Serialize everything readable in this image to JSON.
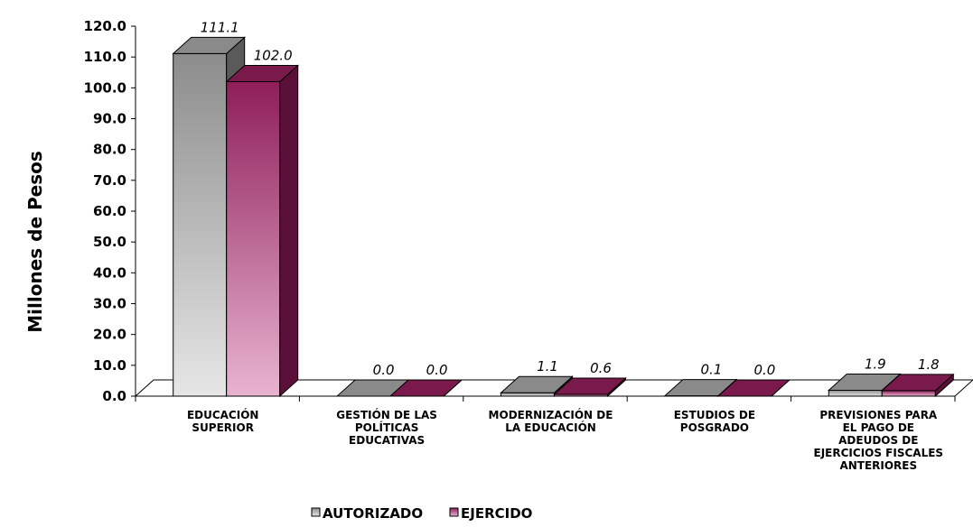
{
  "chart_data": {
    "type": "bar",
    "style": "3d-clustered-column",
    "categories": [
      [
        "EDUCACIÓN",
        "SUPERIOR"
      ],
      [
        "GESTIÓN DE LAS",
        "POLÍTICAS",
        "EDUCATIVAS"
      ],
      [
        "MODERNIZACIÓN DE",
        "LA EDUCACIÓN"
      ],
      [
        "ESTUDIOS DE",
        "POSGRADO"
      ],
      [
        "PREVISIONES PARA",
        "EL PAGO DE",
        "ADEUDOS DE",
        "EJERCICIOS FISCALES",
        "ANTERIORES"
      ]
    ],
    "series": [
      {
        "name": "AUTORIZADO",
        "values": [
          111.1,
          0.0,
          1.1,
          0.1,
          1.9
        ],
        "labels": [
          "111.1",
          "0.0",
          "1.1",
          "0.1",
          "1.9"
        ],
        "color_light": "#e6e6e6",
        "color_dark": "#8c8c8c",
        "color_top": "#8a8a8a",
        "color_side": "#5a5a5a"
      },
      {
        "name": "EJERCIDO",
        "values": [
          102.0,
          0.0,
          0.6,
          0.0,
          1.8
        ],
        "labels": [
          "102.0",
          "0.0",
          "0.6",
          "0.0",
          "1.8"
        ],
        "color_light": "#e8b4d0",
        "color_dark": "#8e1e5a",
        "color_top": "#7a1a4c",
        "color_side": "#5a1038"
      }
    ],
    "ylabel": "Millones de Pesos",
    "xlabel": "",
    "ylim": [
      0,
      120
    ],
    "yticks": [
      "0.0",
      "10.0",
      "20.0",
      "30.0",
      "40.0",
      "50.0",
      "60.0",
      "70.0",
      "80.0",
      "90.0",
      "100.0",
      "110.0",
      "120.0"
    ],
    "grid": false,
    "legend_position": "bottom"
  }
}
